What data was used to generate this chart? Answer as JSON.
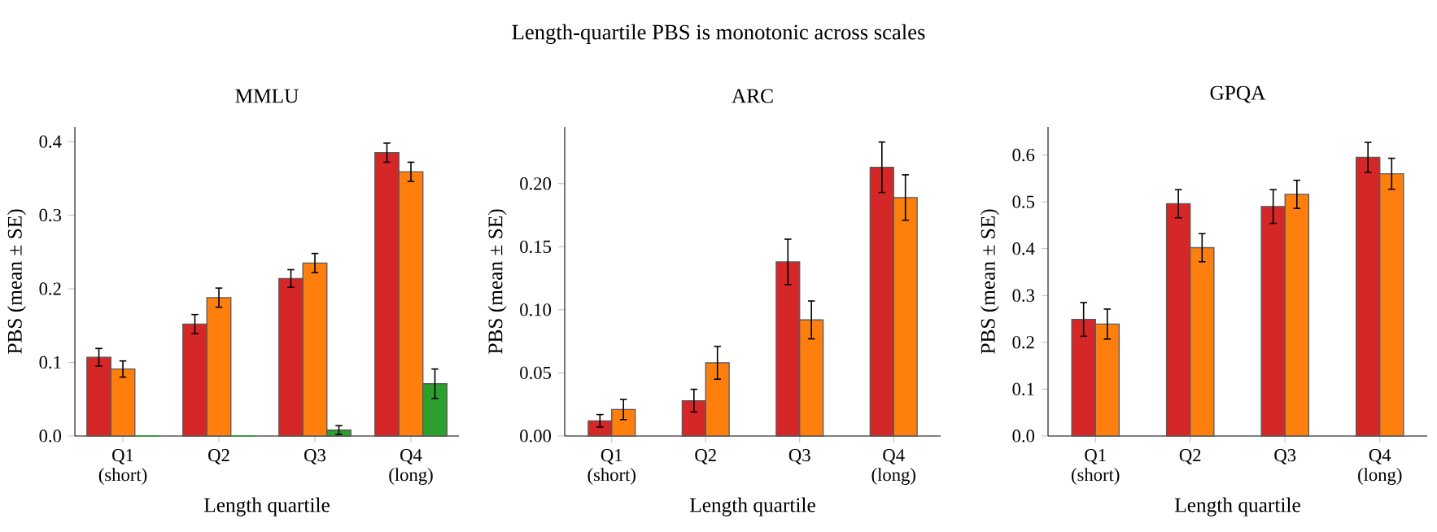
{
  "chart_data": [
    {
      "type": "bar",
      "title": "MMLU",
      "xlabel": "Length quartile",
      "ylabel": "PBS (mean ± SE)",
      "annotations": [
        "Length-quartile PBS is monotonic across scales"
      ],
      "categories": [
        "Q1 (short)",
        "Q2",
        "Q3",
        "Q4 (long)"
      ],
      "series": [
        {
          "color": "#d62728",
          "values": [
            0.107,
            0.152,
            0.214,
            0.385
          ],
          "errors": [
            0.012,
            0.013,
            0.012,
            0.013
          ]
        },
        {
          "color": "#ff7f0e",
          "values": [
            0.091,
            0.188,
            0.235,
            0.359
          ],
          "errors": [
            0.011,
            0.013,
            0.013,
            0.013
          ]
        },
        {
          "color": "#2ca02c",
          "values": [
            0,
            0,
            0.008,
            0.071
          ],
          "errors": [
            null,
            null,
            0.006,
            0.02
          ]
        }
      ],
      "ylim": [
        0,
        0.42
      ],
      "yticks": [
        {
          "value": 0,
          "label": "0.0"
        },
        {
          "value": 0.1,
          "label": "0.1"
        },
        {
          "value": 0.2,
          "label": "0.2"
        },
        {
          "value": 0.3,
          "label": "0.3"
        },
        {
          "value": 0.4,
          "label": "0.4"
        }
      ]
    },
    {
      "type": "bar",
      "title": "ARC",
      "xlabel": "Length quartile",
      "ylabel": "PBS (mean ± SE)",
      "categories": [
        "Q1 (short)",
        "Q2",
        "Q3",
        "Q4 (long)"
      ],
      "series": [
        {
          "color": "#d62728",
          "values": [
            0.012,
            0.028,
            0.138,
            0.213
          ],
          "errors": [
            0.005,
            0.009,
            0.018,
            0.02
          ]
        },
        {
          "color": "#ff7f0e",
          "values": [
            0.021,
            0.058,
            0.092,
            0.189
          ],
          "errors": [
            0.008,
            0.013,
            0.015,
            0.018
          ]
        }
      ],
      "ylim": [
        0,
        0.245
      ],
      "yticks": [
        {
          "value": 0,
          "label": "0.00"
        },
        {
          "value": 0.05,
          "label": "0.05"
        },
        {
          "value": 0.1,
          "label": "0.10"
        },
        {
          "value": 0.15,
          "label": "0.15"
        },
        {
          "value": 0.2,
          "label": "0.20"
        }
      ]
    },
    {
      "type": "bar",
      "title": "GPQA",
      "xlabel": "Length quartile",
      "ylabel": "PBS (mean ± SE)",
      "categories": [
        "Q1 (short)",
        "Q2",
        "Q3",
        "Q4 (long)"
      ],
      "series": [
        {
          "color": "#d62728",
          "values": [
            0.249,
            0.496,
            0.49,
            0.595
          ],
          "errors": [
            0.036,
            0.03,
            0.036,
            0.032
          ]
        },
        {
          "color": "#ff7f0e",
          "values": [
            0.239,
            0.402,
            0.516,
            0.56
          ],
          "errors": [
            0.032,
            0.03,
            0.03,
            0.033
          ]
        }
      ],
      "ylim": [
        0,
        0.66
      ],
      "yticks": [
        {
          "value": 0,
          "label": "0.0"
        },
        {
          "value": 0.1,
          "label": "0.1"
        },
        {
          "value": 0.2,
          "label": "0.2"
        },
        {
          "value": 0.3,
          "label": "0.3"
        },
        {
          "value": 0.4,
          "label": "0.4"
        },
        {
          "value": 0.5,
          "label": "0.5"
        },
        {
          "value": 0.6,
          "label": "0.6"
        }
      ]
    }
  ]
}
